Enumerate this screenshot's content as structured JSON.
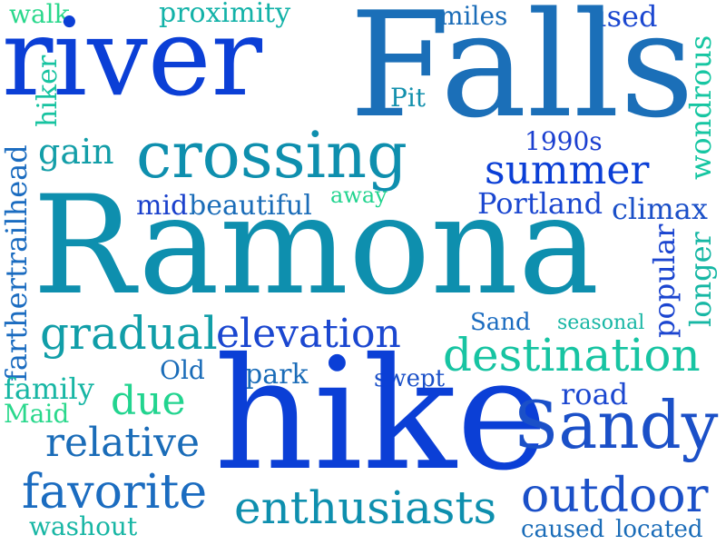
{
  "words": {
    "river": "river",
    "falls": "Falls",
    "ramona": "Ramona",
    "hike": "hike",
    "crossing": "crossing",
    "walk": "walk",
    "proximity": "proximity",
    "miles": "miles",
    "used": "used",
    "hiker": "hiker",
    "pit": "Pit",
    "wondrous": "wondrous",
    "gain": "gain",
    "y1990s": "1990s",
    "summer": "summer",
    "farthertrailhead": "farthertrailhead",
    "away": "away",
    "mid": "mid",
    "beautiful": "beautiful",
    "portland": "Portland",
    "climax": "climax",
    "popular": "popular",
    "longer": "longer",
    "gradual": "gradual",
    "elevation": "elevation",
    "sand": "Sand",
    "seasonal": "seasonal",
    "destination": "destination",
    "old": "Old",
    "park": "park",
    "swept": "swept",
    "family": "family",
    "due": "due",
    "road": "road",
    "maid": "Maid",
    "sandy": "Sandy",
    "relative": "relative",
    "favorite": "favorite",
    "outdoor": "outdoor",
    "enthusiasts": "enthusiasts",
    "washout": "washout",
    "caused": "caused",
    "located": "located"
  },
  "colors": {
    "blue": "#0b3fd6",
    "royal": "#1b4fc9",
    "steel": "#1b6fb8",
    "teal": "#0e8fae",
    "aqua": "#0fb6a4",
    "mint": "#17d28e",
    "green": "#24e07d"
  }
}
